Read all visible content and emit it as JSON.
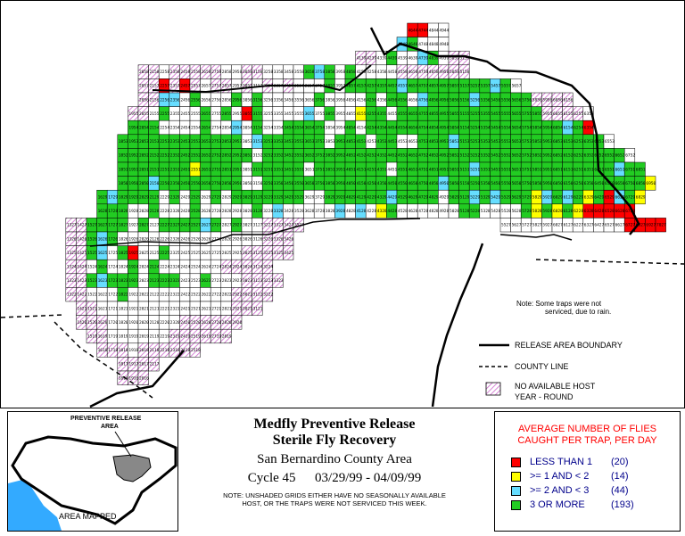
{
  "map": {
    "note_line1": "Note: Some traps were not",
    "note_line2": "serviced, due to rain.",
    "legend": {
      "boundary_label": "RELEASE AREA BOUNDARY",
      "county_label": "COUNTY LINE",
      "nohost_line1": "NO AVAILABLE HOST",
      "nohost_line2": "YEAR - ROUND"
    }
  },
  "inset": {
    "label_line1": "PREVENTIVE RELEASE",
    "label_line2": "AREA",
    "caption": "AREA MAPPED"
  },
  "title": {
    "line1": "Medfly Preventive Release",
    "line2": "Sterile Fly Recovery",
    "line3": "San Bernardino County Area",
    "cycle": "Cycle 45",
    "dates": "03/29/99 - 04/09/99",
    "note1": "NOTE: UNSHADED GRIDS EITHER HAVE NO SEASONALLY AVAILABLE",
    "note2": "HOST, OR THE TRAPS WERE NOT SERVICED THIS WEEK."
  },
  "fly_legend": {
    "heading1": "AVERAGE NUMBER OF FLIES",
    "heading2": "CAUGHT PER TRAP, PER DAY",
    "rows": [
      {
        "label": "LESS THAN 1",
        "count": "(20)",
        "color": "#ff0000"
      },
      {
        "label": ">= 1 AND < 2",
        "count": "(14)",
        "color": "#ffff00"
      },
      {
        "label": ">= 2 AND < 3",
        "count": "(44)",
        "color": "#66ddff"
      },
      {
        "label": "3 OR MORE",
        "count": "(193)",
        "color": "#22cc22"
      }
    ]
  },
  "colors": {
    "red": "#ff0000",
    "yellow": "#ffff00",
    "cyan": "#66ddff",
    "green": "#22cc22",
    "hatch": "#cc66cc",
    "text_red": "#ff0000",
    "text_blue": "#00008b"
  },
  "grid_rows": [
    {
      "row": 0,
      "code": "44",
      "cells": "....................................rrww"
    },
    {
      "row": 1,
      "code": "48",
      "cells": "...................................cgwww"
    },
    {
      "row": 2,
      "code": "39",
      "cells": "...............................hhwgwwcgwhh"
    },
    {
      "row": 3,
      "code": "58",
      "cells": "..........hhwhhhhhwwhhwwwwgcgwgwwwwhhhhhhh"
    },
    {
      "row": 4,
      "code": "57",
      "cells": "..........hhrhrhwhhwhwhwhwwwgwgggggcggggggggcgw"
    },
    {
      "row": 5,
      "code": "56",
      "cells": "..........hhccwgwwwgwgwwwwwgwwwwgwggwcggggcggggghhhh"
    },
    {
      "row": 6,
      "code": "55",
      "cells": ".........hhwgwwwgwgwrgwwwwcwgwwyggwgggggggggggggghhhhw"
    },
    {
      "row": 7,
      "code": "54",
      "cells": ".........gggwwwwgwwcwgwwggggwwgwgggggggggggggggggggcgr"
    },
    {
      "row": 8,
      "code": "53",
      "cells": "........ggggggggggggwcggggggwgggwggwwgggcggggggggggggggw"
    },
    {
      "row": 9,
      "code": "52",
      "cells": "........gggggggggggggwgggggggggggggggggggggggggggggggggggw"
    },
    {
      "row": 10,
      "code": "51",
      "cells": "........gggggggyggggwgggggwgggggggwgggggggcgggggggggggggcgg"
    },
    {
      "row": 11,
      "code": "50",
      "cells": "........gggcggggggggwwgggggggggggggggggcgggggggggggggggggggy"
    },
    {
      "row": 12,
      "code": "29",
      "cells": "......gcggggwgwgwgwgggggggwwggggggcggggwggcgcgggycgcgygrcgy"
    },
    {
      "row": 13,
      "code": "28",
      "cells": "......gggwwgwwwgwwwwwgwcwwwwwcwcwygwwwwwwggwwwwgygygyrrrrr"
    },
    {
      "row": 14,
      "code": "27",
      "cells": "...hhggggwgwggggcgwgwwhhhh...................wwwwwwwwwwwwrrrr"
    },
    {
      "row": 15,
      "code": "26",
      "cells": "...hhgcgwwwwwwwwwwwwwwhhh"
    },
    {
      "row": 16,
      "code": "25",
      "cells": "...hhgcwgrwwgwwwwwwwhhhhh"
    },
    {
      "row": 17,
      "code": "24",
      "cells": "...hhwgwwgwgwwwwwwhhhhh"
    },
    {
      "row": 18,
      "code": "23",
      "cells": "...hhgcgggwgggwwgwwwhhhh"
    },
    {
      "row": 19,
      "code": "22",
      "cells": "...hhwwwgwwwwwwwwwwhhhh"
    },
    {
      "row": 20,
      "code": "21",
      "cells": "....hhwwwwwwwwwwwwwhhh"
    },
    {
      "row": 21,
      "code": "20",
      "cells": "....hhhwwwwwwwhhhhhh"
    },
    {
      "row": 22,
      "code": "19",
      "cells": ".....hhwwwwwwhhhhhh"
    },
    {
      "row": 23,
      "code": "18",
      "cells": "......hhhwhhhhhh"
    },
    {
      "row": 24,
      "code": "17",
      "cells": "........hhhh"
    },
    {
      "row": 25,
      "code": "16",
      "cells": "........hhh"
    }
  ]
}
